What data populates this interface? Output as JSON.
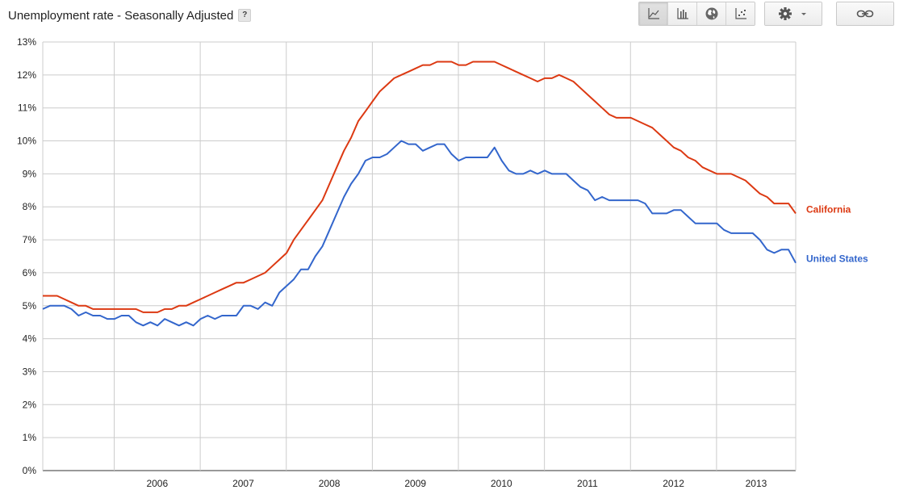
{
  "header": {
    "title": "Unemployment rate - Seasonally Adjusted",
    "help_label": "?"
  },
  "toolbar": {
    "buttons": [
      {
        "name": "line-chart-icon",
        "active": true
      },
      {
        "name": "bar-chart-icon",
        "active": false
      },
      {
        "name": "map-icon",
        "active": false
      },
      {
        "name": "scatter-chart-icon",
        "active": false
      }
    ],
    "settings_icon": "gear-icon",
    "link_icon": "link-icon"
  },
  "chart_data": {
    "type": "line",
    "title": "Unemployment rate - Seasonally Adjusted",
    "y_ticks": [
      "0%",
      "1%",
      "2%",
      "3%",
      "4%",
      "5%",
      "6%",
      "7%",
      "8%",
      "9%",
      "10%",
      "11%",
      "12%",
      "13%"
    ],
    "ylim": [
      0,
      13
    ],
    "y_unit": "%",
    "x_ticks": [
      "2006",
      "2007",
      "2008",
      "2009",
      "2010",
      "2011",
      "2012",
      "2013"
    ],
    "x_start": 2005.17,
    "x_step_months": 1,
    "grid": true,
    "legend": "right, labels at line ends",
    "series": [
      {
        "name": "California",
        "color": "#dc3912",
        "values": [
          5.3,
          5.3,
          5.3,
          5.2,
          5.1,
          5.0,
          5.0,
          4.9,
          4.9,
          4.9,
          4.9,
          4.9,
          4.9,
          4.9,
          4.8,
          4.8,
          4.8,
          4.9,
          4.9,
          5.0,
          5.0,
          5.1,
          5.2,
          5.3,
          5.4,
          5.5,
          5.6,
          5.7,
          5.7,
          5.8,
          5.9,
          6.0,
          6.2,
          6.4,
          6.6,
          7.0,
          7.3,
          7.6,
          7.9,
          8.2,
          8.7,
          9.2,
          9.7,
          10.1,
          10.6,
          10.9,
          11.2,
          11.5,
          11.7,
          11.9,
          12.0,
          12.1,
          12.2,
          12.3,
          12.3,
          12.4,
          12.4,
          12.4,
          12.3,
          12.3,
          12.4,
          12.4,
          12.4,
          12.4,
          12.3,
          12.2,
          12.1,
          12.0,
          11.9,
          11.8,
          11.9,
          11.9,
          12.0,
          11.9,
          11.8,
          11.6,
          11.4,
          11.2,
          11.0,
          10.8,
          10.7,
          10.7,
          10.7,
          10.6,
          10.5,
          10.4,
          10.2,
          10.0,
          9.8,
          9.7,
          9.5,
          9.4,
          9.2,
          9.1,
          9.0,
          9.0,
          9.0,
          8.9,
          8.8,
          8.6,
          8.4,
          8.3,
          8.1,
          8.1,
          8.1,
          7.8
        ]
      },
      {
        "name": "United States",
        "color": "#3366cc",
        "values": [
          4.9,
          5.0,
          5.0,
          5.0,
          4.9,
          4.7,
          4.8,
          4.7,
          4.7,
          4.6,
          4.6,
          4.7,
          4.7,
          4.5,
          4.4,
          4.5,
          4.4,
          4.6,
          4.5,
          4.4,
          4.5,
          4.4,
          4.6,
          4.7,
          4.6,
          4.7,
          4.7,
          4.7,
          5.0,
          5.0,
          4.9,
          5.1,
          5.0,
          5.4,
          5.6,
          5.8,
          6.1,
          6.1,
          6.5,
          6.8,
          7.3,
          7.8,
          8.3,
          8.7,
          9.0,
          9.4,
          9.5,
          9.5,
          9.6,
          9.8,
          10.0,
          9.9,
          9.9,
          9.7,
          9.8,
          9.9,
          9.9,
          9.6,
          9.4,
          9.5,
          9.5,
          9.5,
          9.5,
          9.8,
          9.4,
          9.1,
          9.0,
          9.0,
          9.1,
          9.0,
          9.1,
          9.0,
          9.0,
          9.0,
          8.8,
          8.6,
          8.5,
          8.2,
          8.3,
          8.2,
          8.2,
          8.2,
          8.2,
          8.2,
          8.1,
          7.8,
          7.8,
          7.8,
          7.9,
          7.9,
          7.7,
          7.5,
          7.5,
          7.5,
          7.5,
          7.3,
          7.2,
          7.2,
          7.2,
          7.2,
          7.0,
          6.7,
          6.6,
          6.7,
          6.7,
          6.3
        ]
      }
    ]
  }
}
